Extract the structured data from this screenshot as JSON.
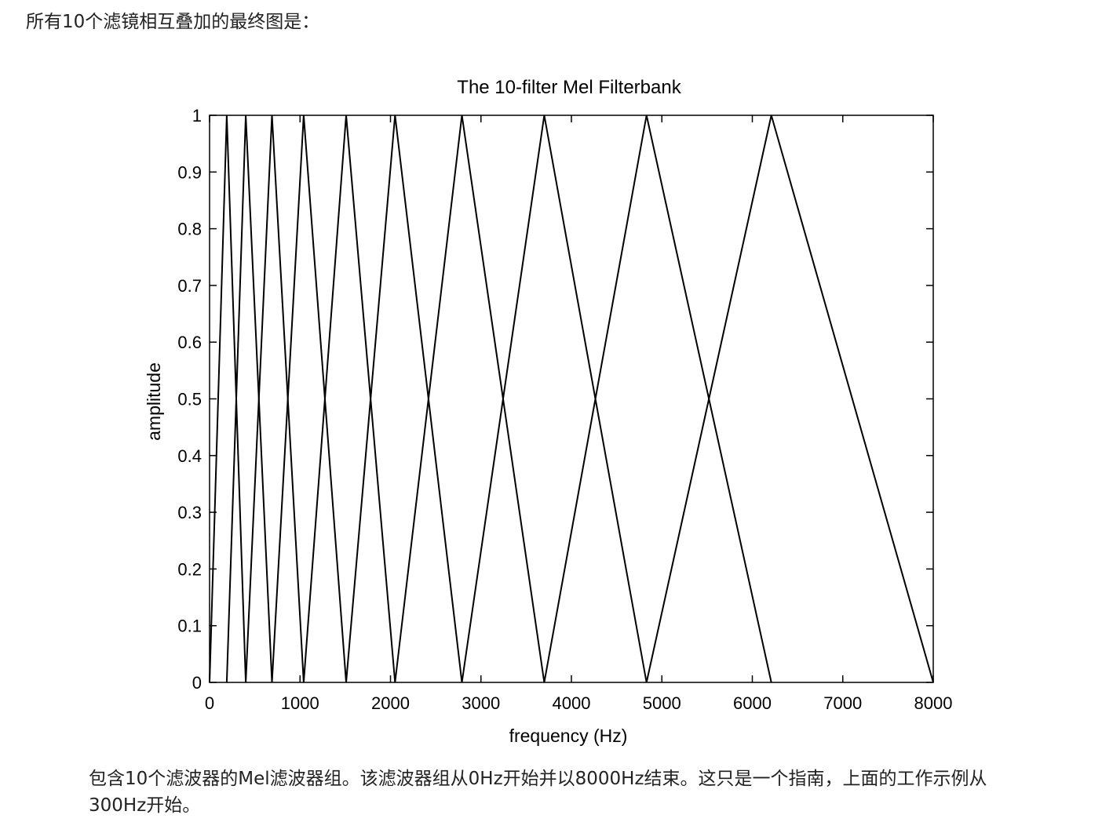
{
  "article": {
    "intro_text": "所有10个滤镜相互叠加的最终图是：",
    "caption_text": "包含10个滤波器的Mel滤波器组。该滤波器组从0Hz开始并以8000Hz结束。这只是一个指南，上面的工作示例从300Hz开始。"
  },
  "colors": {
    "text": "#222222",
    "plot_line": "#000000",
    "background": "#ffffff"
  },
  "chart_data": {
    "type": "line",
    "title": "The 10-filter Mel Filterbank",
    "xlabel": "frequency (Hz)",
    "ylabel": "amplitude",
    "xlim": [
      0,
      8000
    ],
    "ylim": [
      0,
      1
    ],
    "x_ticks": [
      0,
      1000,
      2000,
      3000,
      4000,
      5000,
      6000,
      7000,
      8000
    ],
    "x_tick_labels": [
      "0",
      "1000",
      "2000",
      "3000",
      "4000",
      "5000",
      "6000",
      "7000",
      "8000"
    ],
    "y_ticks": [
      0,
      0.1,
      0.2,
      0.3,
      0.4,
      0.5,
      0.6,
      0.7,
      0.8,
      0.9,
      1
    ],
    "y_tick_labels": [
      "0",
      "0.1",
      "0.2",
      "0.3",
      "0.4",
      "0.5",
      "0.6",
      "0.7",
      "0.8",
      "0.9",
      "1"
    ],
    "grid": false,
    "legend": "none",
    "filter_edges_hz": [
      0,
      190,
      400,
      690,
      1040,
      1510,
      2050,
      2790,
      3700,
      4830,
      6210,
      8000
    ],
    "series": [
      {
        "x": [
          0,
          190,
          400
        ],
        "y": [
          0,
          1,
          0
        ]
      },
      {
        "x": [
          190,
          400,
          690
        ],
        "y": [
          0,
          1,
          0
        ]
      },
      {
        "x": [
          400,
          690,
          1040
        ],
        "y": [
          0,
          1,
          0
        ]
      },
      {
        "x": [
          690,
          1040,
          1510
        ],
        "y": [
          0,
          1,
          0
        ]
      },
      {
        "x": [
          1040,
          1510,
          2050
        ],
        "y": [
          0,
          1,
          0
        ]
      },
      {
        "x": [
          1510,
          2050,
          2790
        ],
        "y": [
          0,
          1,
          0
        ]
      },
      {
        "x": [
          2050,
          2790,
          3700
        ],
        "y": [
          0,
          1,
          0
        ]
      },
      {
        "x": [
          2790,
          3700,
          4830
        ],
        "y": [
          0,
          1,
          0
        ]
      },
      {
        "x": [
          3700,
          4830,
          6210
        ],
        "y": [
          0,
          1,
          0
        ]
      },
      {
        "x": [
          4830,
          6210,
          8000
        ],
        "y": [
          0,
          1,
          0
        ]
      }
    ]
  }
}
